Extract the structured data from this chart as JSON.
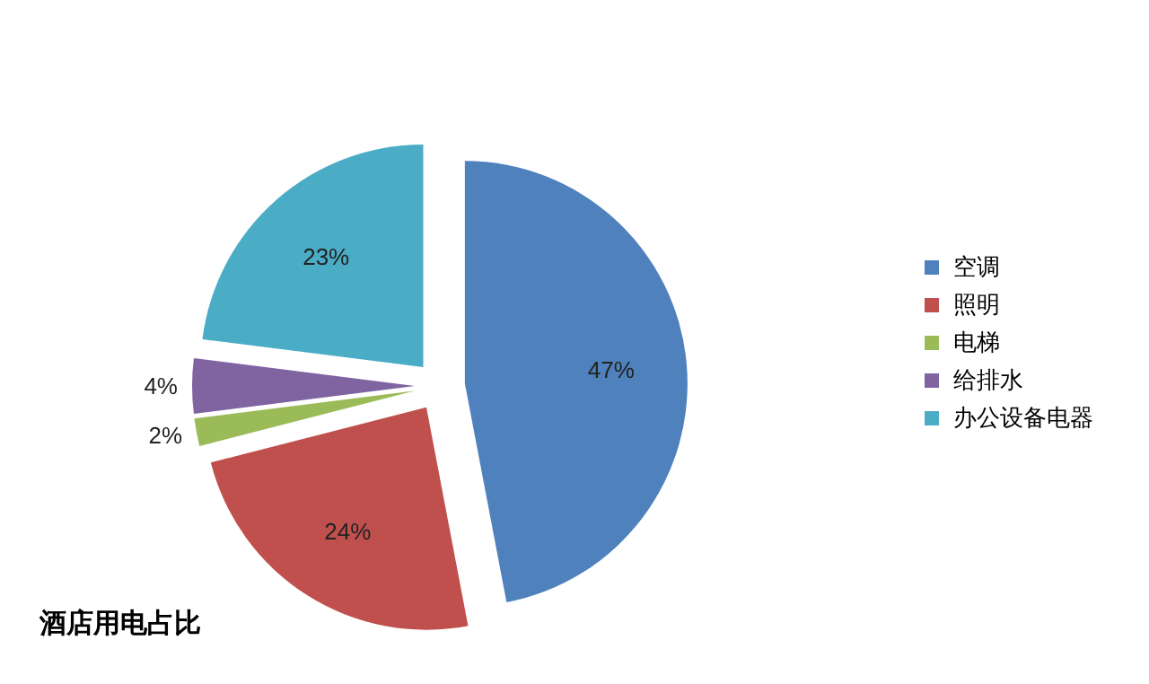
{
  "chart_data": {
    "type": "pie",
    "title": "酒店用电占比",
    "categories": [
      "空调",
      "照明",
      "电梯",
      "给排水",
      "办公设备电器"
    ],
    "values": [
      47,
      24,
      2,
      4,
      23
    ],
    "colors": [
      "#4f81bd",
      "#c0504d",
      "#9bbb59",
      "#8064a2",
      "#4bacc6"
    ],
    "value_labels": [
      "47%",
      "24%",
      "2%",
      "4%",
      "23%"
    ],
    "legend": "right"
  }
}
